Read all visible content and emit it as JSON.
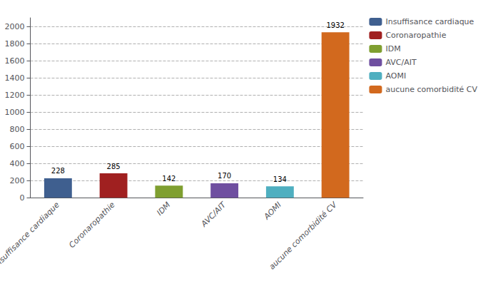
{
  "chart_data": {
    "type": "bar",
    "categories": [
      "Insuffisance cardiaque",
      "Coronaropathie",
      "IDM",
      "AVC/AIT",
      "AOMI",
      "aucune comorbidité CV"
    ],
    "values": [
      228,
      285,
      142,
      170,
      134,
      1932
    ],
    "colors": [
      "#3f5f8f",
      "#a02020",
      "#7f9f30",
      "#6f4fa0",
      "#4fafc0",
      "#d2691e"
    ],
    "ylim": [
      0,
      2100
    ],
    "yticks": [
      0,
      200,
      400,
      600,
      800,
      1000,
      1200,
      1400,
      1600,
      1800,
      2000
    ],
    "grid": true,
    "data_labels": true,
    "legend": "right"
  }
}
